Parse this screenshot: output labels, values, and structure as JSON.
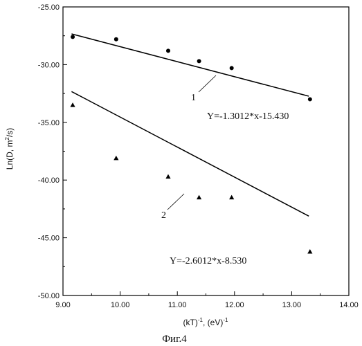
{
  "chart_data": {
    "type": "scatter",
    "x_ticks": [
      "9.00",
      "10.00",
      "11.00",
      "12.00",
      "13.00",
      "14.00"
    ],
    "y_ticks": [
      "-25.00",
      "-30.00",
      "-35.00",
      "-40.00",
      "-45.00",
      "-50.00"
    ],
    "xlim": [
      9.0,
      14.0
    ],
    "ylim": [
      -50.0,
      -25.0
    ],
    "xlabel": {
      "base": "(kT)",
      "exp1": "-1",
      "mid": ", (eV)",
      "exp2": "-1"
    },
    "ylabel": {
      "base": "Ln(D, m",
      "exp": "2",
      "tail": "/s)"
    },
    "grid": false,
    "series": [
      {
        "marker": "circle",
        "points": [
          [
            9.17,
            -27.6
          ],
          [
            9.93,
            -27.8
          ],
          [
            10.84,
            -28.8
          ],
          [
            11.38,
            -29.7
          ],
          [
            11.95,
            -30.3
          ],
          [
            13.32,
            -33.0
          ]
        ],
        "fit": {
          "slope": -1.3012,
          "intercept": -15.43,
          "x": [
            9.15,
            13.3
          ]
        },
        "label": "1",
        "equation": "Y=-1.3012*x-15.430"
      },
      {
        "marker": "triangle",
        "points": [
          [
            9.17,
            -33.5
          ],
          [
            9.93,
            -38.1
          ],
          [
            10.84,
            -39.7
          ],
          [
            11.38,
            -41.5
          ],
          [
            11.95,
            -41.5
          ],
          [
            13.32,
            -46.2
          ]
        ],
        "fit": {
          "slope": -2.6012,
          "intercept": -8.53,
          "x": [
            9.15,
            13.3
          ]
        },
        "label": "2",
        "equation": "Y=-2.6012*x-8.530"
      }
    ]
  },
  "figure": {
    "caption": "Фиг.4"
  }
}
